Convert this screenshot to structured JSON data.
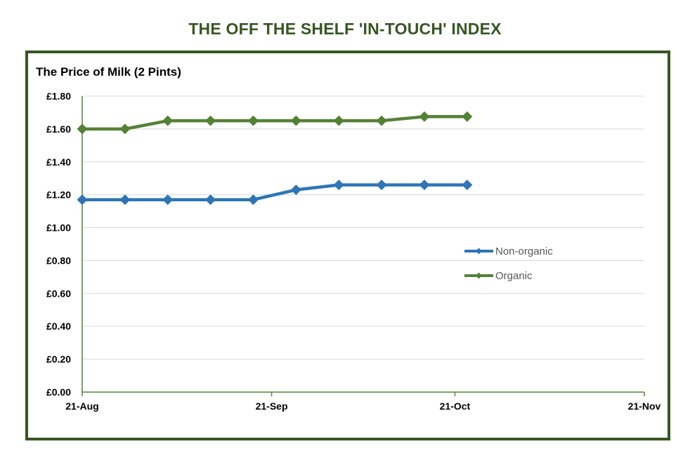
{
  "page": {
    "title": "THE OFF THE SHELF 'IN-TOUCH' INDEX"
  },
  "colors": {
    "frame": "#375623",
    "title": "#375623",
    "grid": "#d9d9d9",
    "axis": "#548235"
  },
  "chart_data": {
    "type": "line",
    "title": "The Price of Milk (2 Pints)",
    "xlabel": "",
    "ylabel": "",
    "x_axis": {
      "type": "date",
      "min": "2023-08-21",
      "max": "2023-11-21",
      "ticks": [
        {
          "date": "2023-08-21",
          "label": "21-Aug"
        },
        {
          "date": "2023-09-21",
          "label": "21-Sep"
        },
        {
          "date": "2023-10-21",
          "label": "21-Oct"
        },
        {
          "date": "2023-11-21",
          "label": "21-Nov"
        }
      ]
    },
    "y_axis": {
      "min": 0,
      "max": 1.8,
      "step": 0.2,
      "tick_labels": [
        "£0.00",
        "£0.20",
        "£0.40",
        "£0.60",
        "£0.80",
        "£1.00",
        "£1.20",
        "£1.40",
        "£1.60",
        "£1.80"
      ]
    },
    "grid": true,
    "legend_position": "right",
    "series": [
      {
        "name": "Non-organic",
        "color": "#2e75b6",
        "marker": "diamond",
        "points": [
          {
            "x": "2023-08-21",
            "y": 1.17
          },
          {
            "x": "2023-08-28",
            "y": 1.17
          },
          {
            "x": "2023-09-04",
            "y": 1.17
          },
          {
            "x": "2023-09-11",
            "y": 1.17
          },
          {
            "x": "2023-09-18",
            "y": 1.17
          },
          {
            "x": "2023-09-25",
            "y": 1.23
          },
          {
            "x": "2023-10-02",
            "y": 1.26
          },
          {
            "x": "2023-10-09",
            "y": 1.26
          },
          {
            "x": "2023-10-16",
            "y": 1.26
          },
          {
            "x": "2023-10-23",
            "y": 1.26
          }
        ]
      },
      {
        "name": "Organic",
        "color": "#548235",
        "marker": "diamond",
        "points": [
          {
            "x": "2023-08-21",
            "y": 1.6
          },
          {
            "x": "2023-08-28",
            "y": 1.6
          },
          {
            "x": "2023-09-04",
            "y": 1.65
          },
          {
            "x": "2023-09-11",
            "y": 1.65
          },
          {
            "x": "2023-09-18",
            "y": 1.65
          },
          {
            "x": "2023-09-25",
            "y": 1.65
          },
          {
            "x": "2023-10-02",
            "y": 1.65
          },
          {
            "x": "2023-10-09",
            "y": 1.65
          },
          {
            "x": "2023-10-16",
            "y": 1.675
          },
          {
            "x": "2023-10-23",
            "y": 1.675
          }
        ]
      }
    ]
  }
}
